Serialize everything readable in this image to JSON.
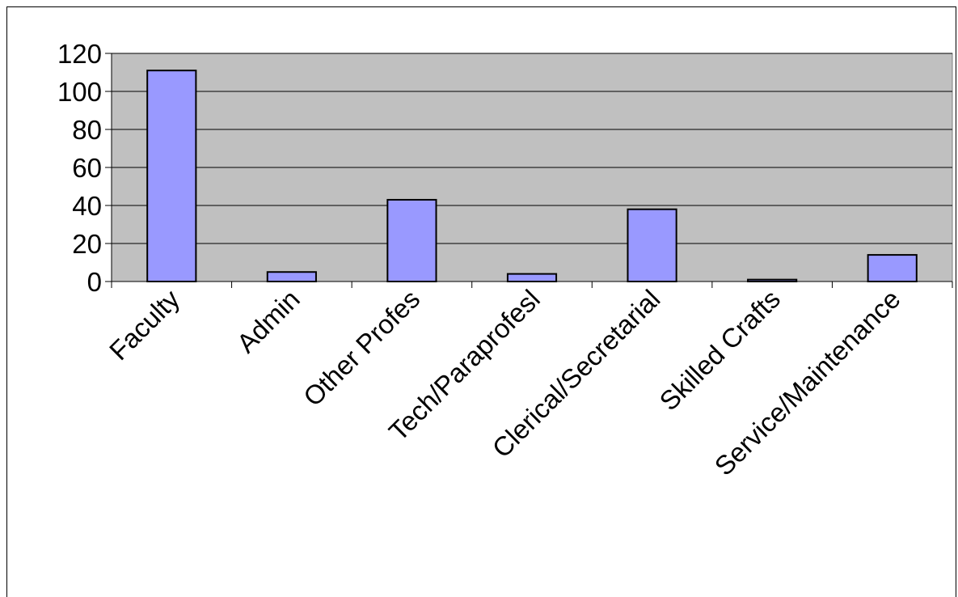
{
  "chart_data": {
    "type": "bar",
    "title": "",
    "xlabel": "",
    "ylabel": "",
    "categories": [
      "Faculty",
      "Admin",
      "Other Profes",
      "Tech/Paraprofesl",
      "Clerical/Secretarial",
      "Skilled Crafts",
      "Service/Maintenance"
    ],
    "values": [
      111,
      5,
      43,
      4,
      38,
      1,
      14
    ],
    "ylim": [
      0,
      120
    ],
    "yticks": [
      "0",
      "20",
      "40",
      "60",
      "80",
      "100",
      "120"
    ],
    "grid": true,
    "legend": "none",
    "colors": {
      "bar_fill": "#9999ff",
      "bar_stroke": "#000000",
      "plot_background": "#c0c0c0",
      "gridline": "#000000"
    }
  }
}
